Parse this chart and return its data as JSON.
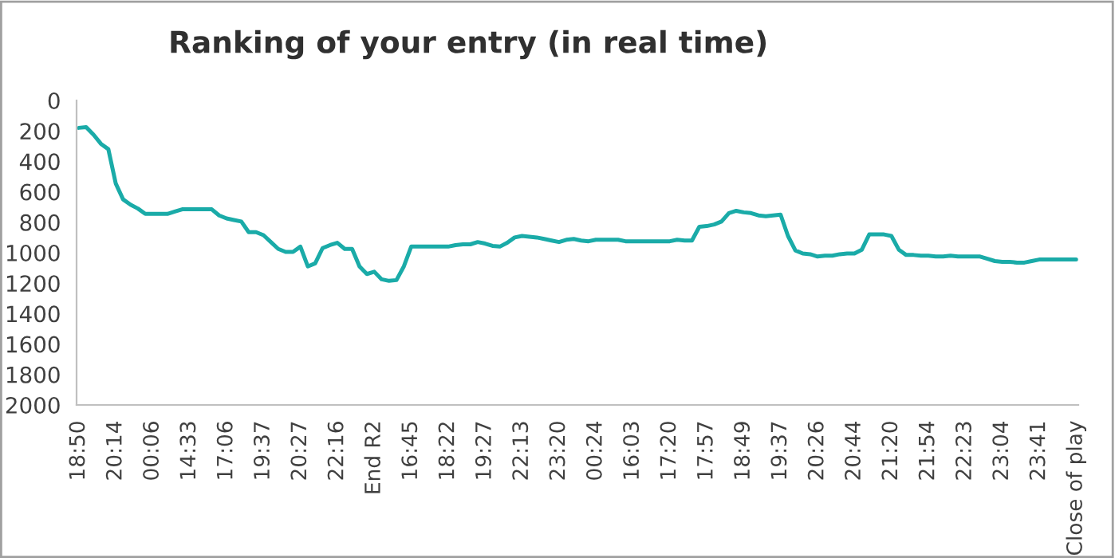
{
  "chart_data": {
    "type": "line",
    "title": "Ranking of your entry (in real time)",
    "categories": [
      "18:50",
      null,
      null,
      null,
      null,
      "20:14",
      null,
      null,
      null,
      null,
      "00:06",
      null,
      null,
      null,
      null,
      "14:33",
      null,
      null,
      null,
      null,
      "17:06",
      null,
      null,
      null,
      null,
      "19:37",
      null,
      null,
      null,
      null,
      "20:27",
      null,
      null,
      null,
      null,
      "22:16",
      null,
      null,
      null,
      null,
      "End R2",
      null,
      null,
      null,
      null,
      "16:45",
      null,
      null,
      null,
      null,
      "18:22",
      null,
      null,
      null,
      null,
      "19:27",
      null,
      null,
      null,
      null,
      "22:13",
      null,
      null,
      null,
      null,
      "23:20",
      null,
      null,
      null,
      null,
      "00:24",
      null,
      null,
      null,
      null,
      "16:03",
      null,
      null,
      null,
      null,
      "17:20",
      null,
      null,
      null,
      null,
      "17:57",
      null,
      null,
      null,
      null,
      "18:49",
      null,
      null,
      null,
      null,
      "19:37",
      null,
      null,
      null,
      null,
      "20:26",
      null,
      null,
      null,
      null,
      "20:44",
      null,
      null,
      null,
      null,
      "21:20",
      null,
      null,
      null,
      null,
      "21:54",
      null,
      null,
      null,
      null,
      "22:23",
      null,
      null,
      null,
      null,
      "23:04",
      null,
      null,
      null,
      null,
      "23:41",
      null,
      null,
      null,
      null,
      "Close of play"
    ],
    "series": [
      {
        "color": "#1aaba8",
        "values": [
          180,
          175,
          225,
          285,
          320,
          545,
          650,
          685,
          710,
          745,
          745,
          745,
          745,
          730,
          715,
          715,
          715,
          715,
          715,
          755,
          775,
          785,
          795,
          865,
          865,
          885,
          930,
          975,
          995,
          995,
          960,
          1090,
          1070,
          970,
          950,
          935,
          975,
          975,
          1090,
          1140,
          1125,
          1175,
          1185,
          1180,
          1090,
          960,
          960,
          960,
          960,
          960,
          960,
          950,
          945,
          945,
          930,
          940,
          955,
          960,
          935,
          900,
          890,
          895,
          900,
          910,
          920,
          930,
          915,
          910,
          920,
          925,
          915,
          915,
          915,
          915,
          925,
          925,
          925,
          925,
          925,
          925,
          925,
          915,
          920,
          920,
          830,
          825,
          815,
          795,
          740,
          725,
          735,
          740,
          755,
          760,
          755,
          750,
          890,
          985,
          1005,
          1010,
          1025,
          1020,
          1020,
          1010,
          1005,
          1005,
          980,
          880,
          880,
          880,
          890,
          980,
          1015,
          1015,
          1020,
          1020,
          1025,
          1025,
          1020,
          1025,
          1025,
          1025,
          1025,
          1040,
          1055,
          1060,
          1060,
          1065,
          1065,
          1055,
          1045,
          1045,
          1045,
          1045,
          1045,
          1045
        ]
      }
    ],
    "ylim": [
      2000,
      0
    ],
    "yticks": [
      0,
      200,
      400,
      600,
      800,
      1000,
      1200,
      1400,
      1600,
      1800,
      2000
    ],
    "grid": false,
    "legend": false,
    "marker": "none",
    "line_style": "solid"
  }
}
